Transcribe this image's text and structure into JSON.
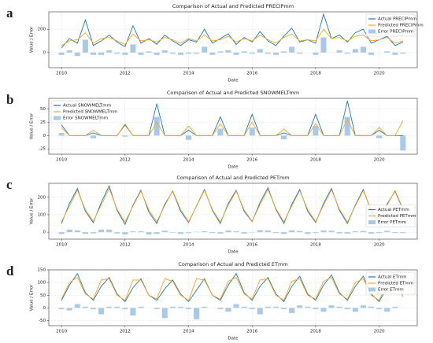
{
  "chart_data": [
    {
      "type": "line",
      "label": "a",
      "title": "Comparison of Actual and Predicted PRECIPmm",
      "x_label": "Date",
      "y_label": "Value / Error",
      "legend": "upper right",
      "grid": true,
      "x": [
        2010,
        2010.25,
        2010.5,
        2010.75,
        2011,
        2011.25,
        2011.5,
        2011.75,
        2012,
        2012.25,
        2012.5,
        2012.75,
        2013,
        2013.25,
        2013.5,
        2013.75,
        2014,
        2014.25,
        2014.5,
        2014.75,
        2015,
        2015.25,
        2015.5,
        2015.75,
        2016,
        2016.25,
        2016.5,
        2016.75,
        2017,
        2017.25,
        2017.5,
        2017.75,
        2018,
        2018.25,
        2018.5,
        2018.75,
        2019,
        2019.25,
        2019.5,
        2019.75,
        2020,
        2020.25,
        2020.5,
        2020.75
      ],
      "xlim": [
        2009.6,
        2021.2
      ],
      "xticks": [
        2010,
        2012,
        2014,
        2016,
        2018,
        2020
      ],
      "ylim": [
        -130,
        350
      ],
      "yticks": [
        0,
        200
      ],
      "series": [
        {
          "name": "Actual PRECIPmm",
          "color": "#1f77b4",
          "type": "line",
          "values": [
            40,
            120,
            80,
            280,
            60,
            100,
            150,
            90,
            50,
            230,
            80,
            120,
            70,
            150,
            100,
            60,
            110,
            90,
            200,
            80,
            120,
            160,
            70,
            130,
            90,
            180,
            100,
            60,
            140,
            210,
            90,
            110,
            80,
            330,
            120,
            150,
            90,
            170,
            200,
            80,
            110,
            140,
            60,
            90
          ]
        },
        {
          "name": "Predicted PRECIPmm",
          "color": "#f5a623",
          "type": "line",
          "values": [
            60,
            100,
            110,
            170,
            80,
            120,
            130,
            100,
            70,
            160,
            100,
            110,
            90,
            130,
            110,
            80,
            120,
            100,
            150,
            100,
            110,
            140,
            90,
            120,
            100,
            150,
            110,
            80,
            130,
            160,
            100,
            110,
            100,
            200,
            120,
            130,
            100,
            140,
            150,
            100,
            110,
            130,
            80,
            100
          ]
        },
        {
          "name": "Error PRECIPmm",
          "color": "#a9c9e8",
          "type": "bar",
          "values": [
            -20,
            20,
            -30,
            110,
            -20,
            -20,
            20,
            -10,
            -20,
            70,
            -20,
            10,
            -20,
            20,
            -10,
            -20,
            -10,
            -10,
            50,
            -20,
            10,
            20,
            -20,
            10,
            -10,
            30,
            -10,
            -20,
            10,
            50,
            -10,
            0,
            -20,
            130,
            0,
            20,
            -10,
            30,
            50,
            -20,
            0,
            10,
            -20,
            -10
          ]
        }
      ]
    },
    {
      "type": "line",
      "label": "b",
      "title": "Comparison of Actual and Predicted SNOWMELTmm",
      "x_label": "Date",
      "y_label": "Value / Error",
      "legend": "upper left",
      "grid": true,
      "x": [
        2010,
        2010.25,
        2010.5,
        2010.75,
        2011,
        2011.25,
        2011.5,
        2011.75,
        2012,
        2012.25,
        2012.5,
        2012.75,
        2013,
        2013.25,
        2013.5,
        2013.75,
        2014,
        2014.25,
        2014.5,
        2014.75,
        2015,
        2015.25,
        2015.5,
        2015.75,
        2016,
        2016.25,
        2016.5,
        2016.75,
        2017,
        2017.25,
        2017.5,
        2017.75,
        2018,
        2018.25,
        2018.5,
        2018.75,
        2019,
        2019.25,
        2019.5,
        2019.75,
        2020,
        2020.25,
        2020.5,
        2020.75
      ],
      "xlim": [
        2009.6,
        2021.2
      ],
      "xticks": [
        2010,
        2012,
        2014,
        2016,
        2018,
        2020
      ],
      "ylim": [
        -35,
        70
      ],
      "yticks": [
        -25,
        0,
        25,
        50
      ],
      "series": [
        {
          "name": "Actual SNOWMELTmm",
          "color": "#1f77b4",
          "type": "line",
          "values": [
            20,
            0,
            0,
            0,
            5,
            0,
            0,
            0,
            20,
            0,
            0,
            0,
            60,
            0,
            0,
            0,
            10,
            0,
            0,
            0,
            35,
            0,
            0,
            0,
            40,
            0,
            0,
            0,
            5,
            0,
            0,
            0,
            40,
            0,
            0,
            0,
            65,
            0,
            0,
            0,
            10,
            0,
            0,
            0
          ]
        },
        {
          "name": "Predicted SNOWMELTmm",
          "color": "#f5a623",
          "type": "line",
          "values": [
            15,
            0,
            0,
            0,
            10,
            0,
            0,
            0,
            22,
            0,
            0,
            0,
            25,
            0,
            0,
            0,
            18,
            0,
            0,
            0,
            22,
            0,
            0,
            0,
            25,
            0,
            0,
            0,
            12,
            0,
            0,
            0,
            22,
            0,
            0,
            0,
            30,
            0,
            0,
            0,
            15,
            0,
            0,
            28
          ]
        },
        {
          "name": "Error SNOWMELTmm",
          "color": "#a9c9e8",
          "type": "bar",
          "values": [
            5,
            0,
            0,
            0,
            -5,
            0,
            0,
            0,
            -2,
            0,
            0,
            0,
            35,
            0,
            0,
            0,
            -8,
            0,
            0,
            0,
            13,
            0,
            0,
            0,
            15,
            0,
            0,
            0,
            -7,
            0,
            0,
            0,
            18,
            0,
            0,
            0,
            35,
            0,
            0,
            0,
            -5,
            0,
            0,
            -28
          ]
        }
      ]
    },
    {
      "type": "line",
      "label": "c",
      "title": "Comparison of Actual and Predicted PETmm",
      "x_label": "Date",
      "y_label": "Value / Error",
      "legend": "center right",
      "grid": true,
      "x": [
        2010,
        2010.25,
        2010.5,
        2010.75,
        2011,
        2011.25,
        2011.5,
        2011.75,
        2012,
        2012.25,
        2012.5,
        2012.75,
        2013,
        2013.25,
        2013.5,
        2013.75,
        2014,
        2014.25,
        2014.5,
        2014.75,
        2015,
        2015.25,
        2015.5,
        2015.75,
        2016,
        2016.25,
        2016.5,
        2016.75,
        2017,
        2017.25,
        2017.5,
        2017.75,
        2018,
        2018.25,
        2018.5,
        2018.75,
        2019,
        2019.25,
        2019.5,
        2019.75,
        2020,
        2020.25,
        2020.5,
        2020.75
      ],
      "xlim": [
        2009.6,
        2021.2
      ],
      "xticks": [
        2010,
        2012,
        2014,
        2016,
        2018,
        2020
      ],
      "ylim": [
        -40,
        280
      ],
      "yticks": [
        0,
        100,
        200
      ],
      "series": [
        {
          "name": "Actual PETmm",
          "color": "#1f77b4",
          "type": "line",
          "values": [
            50,
            165,
            250,
            120,
            55,
            170,
            265,
            125,
            45,
            155,
            240,
            115,
            50,
            160,
            235,
            120,
            55,
            150,
            245,
            125,
            50,
            165,
            240,
            120,
            60,
            170,
            255,
            130,
            50,
            160,
            245,
            120,
            55,
            165,
            250,
            125,
            50,
            155,
            245,
            120,
            55,
            160,
            235,
            130
          ]
        },
        {
          "name": "Predicted PETmm",
          "color": "#f5a623",
          "type": "line",
          "values": [
            60,
            150,
            240,
            130,
            62,
            155,
            250,
            132,
            58,
            150,
            235,
            128,
            60,
            152,
            238,
            130,
            60,
            148,
            240,
            130,
            58,
            155,
            235,
            128,
            62,
            158,
            245,
            135,
            60,
            150,
            238,
            130,
            60,
            155,
            242,
            132,
            58,
            150,
            238,
            128,
            60,
            152,
            240,
            135
          ]
        },
        {
          "name": "Error PETmm",
          "color": "#a9c9e8",
          "type": "bar",
          "values": [
            -10,
            15,
            10,
            -10,
            -7,
            15,
            15,
            -7,
            -13,
            5,
            5,
            -13,
            -10,
            8,
            -3,
            -10,
            -5,
            2,
            5,
            -5,
            -8,
            10,
            5,
            -8,
            -2,
            12,
            10,
            -5,
            -10,
            10,
            7,
            -10,
            -5,
            10,
            8,
            -7,
            -8,
            5,
            7,
            -8,
            -5,
            8,
            -5,
            -5
          ]
        }
      ]
    },
    {
      "type": "line",
      "label": "d",
      "title": "Comparison of Actual and Predicted ETmm",
      "x_label": "Date",
      "y_label": "Value / Error",
      "legend": "upper right",
      "grid": true,
      "x": [
        2010,
        2010.25,
        2010.5,
        2010.75,
        2011,
        2011.25,
        2011.5,
        2011.75,
        2012,
        2012.25,
        2012.5,
        2012.75,
        2013,
        2013.25,
        2013.5,
        2013.75,
        2014,
        2014.25,
        2014.5,
        2014.75,
        2015,
        2015.25,
        2015.5,
        2015.75,
        2016,
        2016.25,
        2016.5,
        2016.75,
        2017,
        2017.25,
        2017.5,
        2017.75,
        2018,
        2018.25,
        2018.5,
        2018.75,
        2019,
        2019.25,
        2019.5,
        2019.75,
        2020,
        2020.25,
        2020.5,
        2020.75
      ],
      "xlim": [
        2009.6,
        2021.2
      ],
      "xticks": [
        2010,
        2012,
        2014,
        2016,
        2018,
        2020
      ],
      "ylim": [
        -70,
        150
      ],
      "yticks": [
        -50,
        0,
        50,
        100,
        150
      ],
      "series": [
        {
          "name": "Actual ETmm",
          "color": "#1f77b4",
          "type": "line",
          "values": [
            30,
            90,
            135,
            60,
            30,
            85,
            120,
            55,
            25,
            80,
            115,
            50,
            30,
            75,
            110,
            55,
            25,
            70,
            115,
            50,
            30,
            90,
            135,
            60,
            30,
            85,
            120,
            55,
            25,
            85,
            125,
            55,
            30,
            90,
            130,
            60,
            30,
            85,
            125,
            55,
            25,
            80,
            110,
            45
          ]
        },
        {
          "name": "Predicted ETmm",
          "color": "#f5a623",
          "type": "line",
          "values": [
            35,
            100,
            120,
            55,
            35,
            110,
            115,
            50,
            30,
            110,
            110,
            50,
            35,
            115,
            105,
            50,
            30,
            115,
            110,
            50,
            35,
            105,
            120,
            55,
            35,
            110,
            115,
            50,
            30,
            105,
            115,
            50,
            35,
            105,
            120,
            55,
            35,
            100,
            115,
            50,
            30,
            95,
            105,
            45
          ]
        },
        {
          "name": "Error ETmm",
          "color": "#a9c9e8",
          "type": "bar",
          "values": [
            -5,
            -10,
            15,
            5,
            -5,
            -25,
            5,
            5,
            -5,
            -30,
            5,
            0,
            -5,
            -40,
            5,
            5,
            -5,
            -45,
            5,
            0,
            -5,
            -15,
            15,
            5,
            -5,
            -25,
            5,
            5,
            -5,
            -20,
            10,
            5,
            -5,
            -15,
            10,
            5,
            -5,
            -15,
            10,
            5,
            -5,
            -15,
            5,
            0
          ]
        }
      ]
    }
  ]
}
